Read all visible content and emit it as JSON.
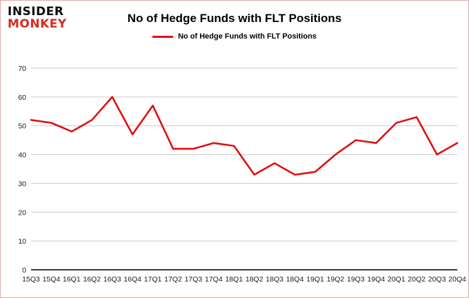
{
  "logo": {
    "line1": "INSIDER",
    "line2": "MONKEY"
  },
  "header": {
    "title": "No of Hedge Funds with FLT Positions"
  },
  "legend": {
    "label": "No of Hedge Funds with FLT Positions",
    "color": "#e01010"
  },
  "chart_data": {
    "type": "line",
    "categories": [
      "15Q3",
      "15Q4",
      "16Q1",
      "16Q2",
      "16Q3",
      "16Q4",
      "17Q1",
      "17Q2",
      "17Q3",
      "17Q4",
      "18Q1",
      "18Q2",
      "18Q3",
      "18Q4",
      "19Q1",
      "19Q2",
      "19Q3",
      "19Q4",
      "20Q1",
      "20Q2",
      "20Q3",
      "20Q4"
    ],
    "values": [
      52,
      51,
      48,
      52,
      60,
      47,
      57,
      42,
      42,
      44,
      43,
      33,
      37,
      33,
      34,
      40,
      45,
      44,
      51,
      53,
      40,
      44
    ],
    "title": "No of Hedge Funds with FLT Positions",
    "xlabel": "",
    "ylabel": "",
    "ylim": [
      0,
      70
    ],
    "yticks": [
      0,
      10,
      20,
      30,
      40,
      50,
      60,
      70
    ],
    "grid": true,
    "line_color": "#e01010",
    "legend_position": "top"
  }
}
